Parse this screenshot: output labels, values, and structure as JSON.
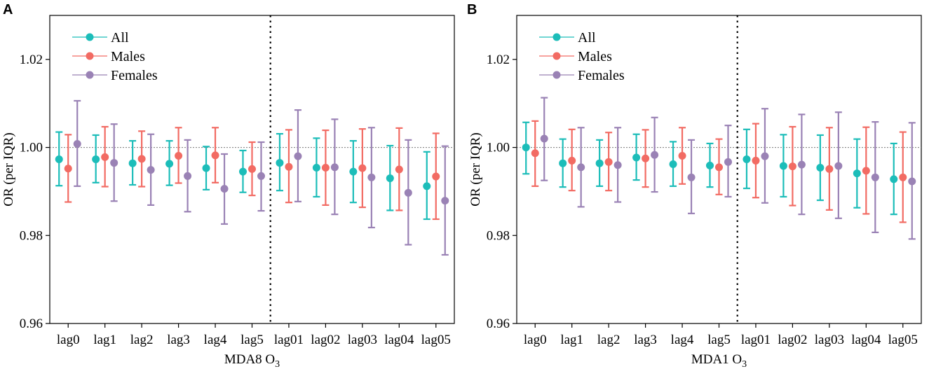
{
  "colors": {
    "All": "#1cbdb9",
    "Males": "#f26b63",
    "Females": "#9a82b5"
  },
  "chart_data": [
    {
      "type": "errorbar",
      "panel_label": "A",
      "title": "",
      "xlabel": "MDA8 O",
      "xlabel_sub": "3",
      "ylabel": "OR (per IQR)",
      "ylim": [
        0.96,
        1.03
      ],
      "yticks": [
        0.96,
        0.98,
        1.0,
        1.02
      ],
      "ytick_labels": [
        "0.96",
        "0.98",
        "1.00",
        "1.02"
      ],
      "reference_line": 1.0,
      "divider_after": "lag5",
      "legend_position": "top-left",
      "categories": [
        "lag0",
        "lag1",
        "lag2",
        "lag3",
        "lag4",
        "lag5",
        "lag01",
        "lag02",
        "lag03",
        "lag04",
        "lag05"
      ],
      "series": [
        {
          "name": "All",
          "values": [
            0.9973,
            0.9973,
            0.9964,
            0.9963,
            0.9953,
            0.9945,
            0.9965,
            0.9954,
            0.9945,
            0.993,
            0.9912
          ],
          "lower": [
            0.9913,
            0.992,
            0.9915,
            0.9914,
            0.9904,
            0.9898,
            0.9902,
            0.9888,
            0.9875,
            0.9857,
            0.9837
          ],
          "upper": [
            1.0035,
            1.0028,
            1.0015,
            1.0015,
            1.0002,
            0.9993,
            1.0031,
            1.0021,
            1.0015,
            1.0004,
            0.999
          ]
        },
        {
          "name": "Males",
          "values": [
            0.9952,
            0.9978,
            0.9974,
            0.9981,
            0.9982,
            0.9951,
            0.9956,
            0.9954,
            0.9953,
            0.995,
            0.9934
          ],
          "lower": [
            0.9876,
            0.9911,
            0.9911,
            0.9919,
            0.992,
            0.9891,
            0.9875,
            0.9869,
            0.9864,
            0.9857,
            0.9837
          ],
          "upper": [
            1.0029,
            1.0047,
            1.0037,
            1.0045,
            1.0045,
            1.0012,
            1.004,
            1.0039,
            1.0042,
            1.0044,
            1.0032
          ]
        },
        {
          "name": "Females",
          "values": [
            1.0008,
            0.9965,
            0.9949,
            0.9935,
            0.9906,
            0.9935,
            0.998,
            0.9955,
            0.9932,
            0.9897,
            0.9879
          ],
          "lower": [
            0.9912,
            0.9878,
            0.9869,
            0.9854,
            0.9826,
            0.9856,
            0.9877,
            0.9848,
            0.9818,
            0.9779,
            0.9756
          ],
          "upper": [
            1.0106,
            1.0053,
            1.003,
            1.0017,
            0.9985,
            1.0012,
            1.0085,
            1.0064,
            1.0045,
            1.0017,
            1.0003
          ]
        }
      ]
    },
    {
      "type": "errorbar",
      "panel_label": "B",
      "title": "",
      "xlabel": "MDA1 O",
      "xlabel_sub": "3",
      "ylabel": "OR (per IQR)",
      "ylim": [
        0.96,
        1.03
      ],
      "yticks": [
        0.96,
        0.98,
        1.0,
        1.02
      ],
      "ytick_labels": [
        "0.96",
        "0.98",
        "1.00",
        "1.02"
      ],
      "reference_line": 1.0,
      "divider_after": "lag5",
      "legend_position": "top-left",
      "categories": [
        "lag0",
        "lag1",
        "lag2",
        "lag3",
        "lag4",
        "lag5",
        "lag01",
        "lag02",
        "lag03",
        "lag04",
        "lag05"
      ],
      "series": [
        {
          "name": "All",
          "values": [
            1.0,
            0.9964,
            0.9964,
            0.9977,
            0.9962,
            0.9959,
            0.9973,
            0.9958,
            0.9954,
            0.9941,
            0.9928
          ],
          "lower": [
            0.994,
            0.991,
            0.9912,
            0.9926,
            0.9912,
            0.991,
            0.9907,
            0.9888,
            0.988,
            0.9863,
            0.9848
          ],
          "upper": [
            1.0057,
            1.0019,
            1.0017,
            1.003,
            1.0013,
            1.0009,
            1.0041,
            1.0029,
            1.0028,
            1.0019,
            1.0009
          ]
        },
        {
          "name": "Males",
          "values": [
            0.9987,
            0.997,
            0.9967,
            0.9975,
            0.9981,
            0.9955,
            0.997,
            0.9957,
            0.9951,
            0.9947,
            0.9932
          ],
          "lower": [
            0.9912,
            0.9902,
            0.9902,
            0.991,
            0.9917,
            0.9893,
            0.9886,
            0.9868,
            0.9858,
            0.9849,
            0.983
          ],
          "upper": [
            1.006,
            1.0041,
            1.0034,
            1.004,
            1.0045,
            1.0019,
            1.0054,
            1.0047,
            1.0045,
            1.0046,
            1.0035
          ]
        },
        {
          "name": "Females",
          "values": [
            1.002,
            0.9955,
            0.996,
            0.9983,
            0.9932,
            0.9967,
            0.998,
            0.9961,
            0.9958,
            0.9932,
            0.9923
          ],
          "lower": [
            0.9925,
            0.9865,
            0.9876,
            0.9899,
            0.985,
            0.9888,
            0.9874,
            0.9848,
            0.9839,
            0.9807,
            0.9792
          ],
          "upper": [
            1.0113,
            1.0045,
            1.0045,
            1.0068,
            1.0017,
            1.005,
            1.0088,
            1.0075,
            1.008,
            1.0058,
            1.0056
          ]
        }
      ]
    }
  ]
}
